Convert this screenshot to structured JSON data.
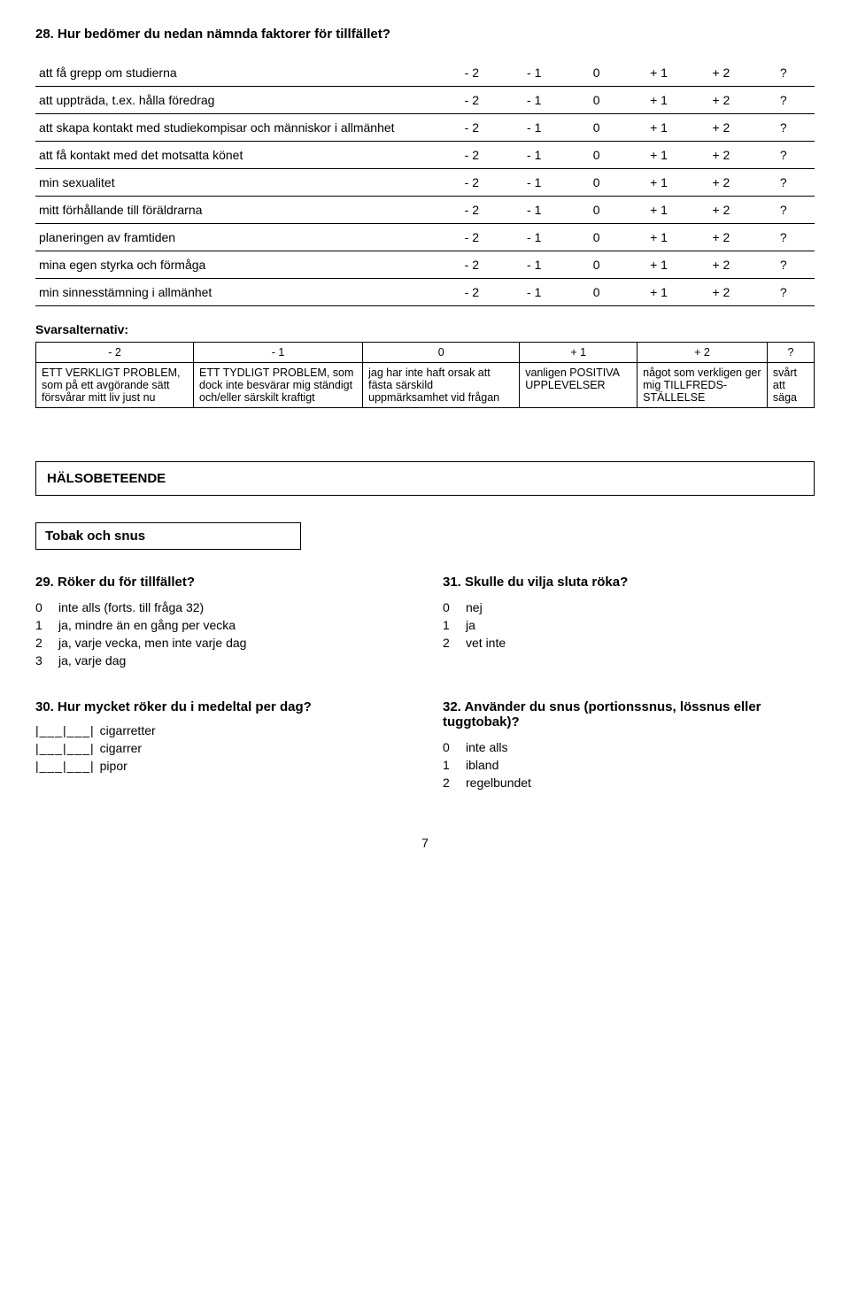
{
  "q28": {
    "title": "28. Hur bedömer du nedan nämnda faktorer för tillfället?",
    "scale": [
      "- 2",
      "- 1",
      "0",
      "+ 1",
      "+ 2",
      "?"
    ],
    "rows": [
      "att få grepp om studierna",
      "att uppträda, t.ex. hålla föredrag",
      "att skapa kontakt med studiekompisar och människor i allmänhet",
      "att få kontakt med det motsatta könet",
      "min sexualitet",
      "mitt förhållande till föräldrarna",
      "planeringen av framtiden",
      "mina egen styrka och förmåga",
      "min sinnesstämning i allmänhet"
    ]
  },
  "svars": {
    "label": "Svarsalternativ:",
    "headers": [
      "- 2",
      "- 1",
      "0",
      "+ 1",
      "+ 2",
      "?"
    ],
    "cells": [
      "ETT VERKLIGT PROBLEM, som på ett avgörande sätt försvårar mitt liv just nu",
      "ETT TYDLIGT PROBLEM, som dock inte besvärar mig ständigt och/eller särskilt kraftigt",
      "jag har inte haft orsak att fästa särskild uppmärksamhet vid frågan",
      "vanligen POSITIVA UPPLEVELSER",
      "något som verkligen ger mig TILLFREDS-STÄLLELSE",
      "svårt att säga"
    ]
  },
  "section": "HÄLSOBETEENDE",
  "subsection": "Tobak och snus",
  "q29": {
    "title": "29. Röker du för tillfället?",
    "options": [
      {
        "n": "0",
        "t": "inte alls (forts. till fråga 32)"
      },
      {
        "n": "1",
        "t": "ja, mindre än en gång per vecka"
      },
      {
        "n": "2",
        "t": "ja, varje vecka, men inte varje dag"
      },
      {
        "n": "3",
        "t": "ja, varje dag"
      }
    ]
  },
  "q31": {
    "title": "31. Skulle du vilja sluta röka?",
    "options": [
      {
        "n": "0",
        "t": "nej"
      },
      {
        "n": "1",
        "t": "ja"
      },
      {
        "n": "2",
        "t": "vet inte"
      }
    ]
  },
  "q30": {
    "title": "30. Hur mycket röker du i medeltal per dag?",
    "blank": "|___|___|",
    "fields": [
      "cigarretter",
      "cigarrer",
      "pipor"
    ]
  },
  "q32": {
    "title": "32. Använder du snus (portionssnus, lössnus eller tuggtobak)?",
    "options": [
      {
        "n": "0",
        "t": "inte alls"
      },
      {
        "n": "1",
        "t": "ibland"
      },
      {
        "n": "2",
        "t": "regelbundet"
      }
    ]
  },
  "pageNumber": "7"
}
